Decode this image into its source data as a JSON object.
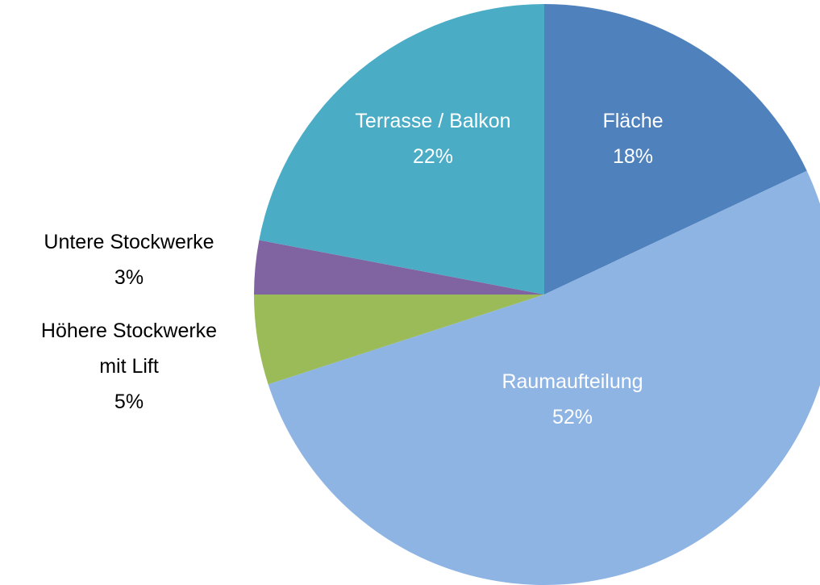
{
  "chart_data": {
    "type": "pie",
    "categories": [
      "Fläche",
      "Raumaufteilung",
      "Höhere Stockwerke mit Lift",
      "Untere Stockwerke",
      "Terrasse / Balkon"
    ],
    "values": [
      18,
      52,
      5,
      3,
      22
    ],
    "value_labels": [
      "18%",
      "52%",
      "5%",
      "3%",
      "22%"
    ],
    "colors": [
      "#4f81bd",
      "#8eb4e3",
      "#9bbb59",
      "#8064a2",
      "#4bacc6"
    ]
  }
}
